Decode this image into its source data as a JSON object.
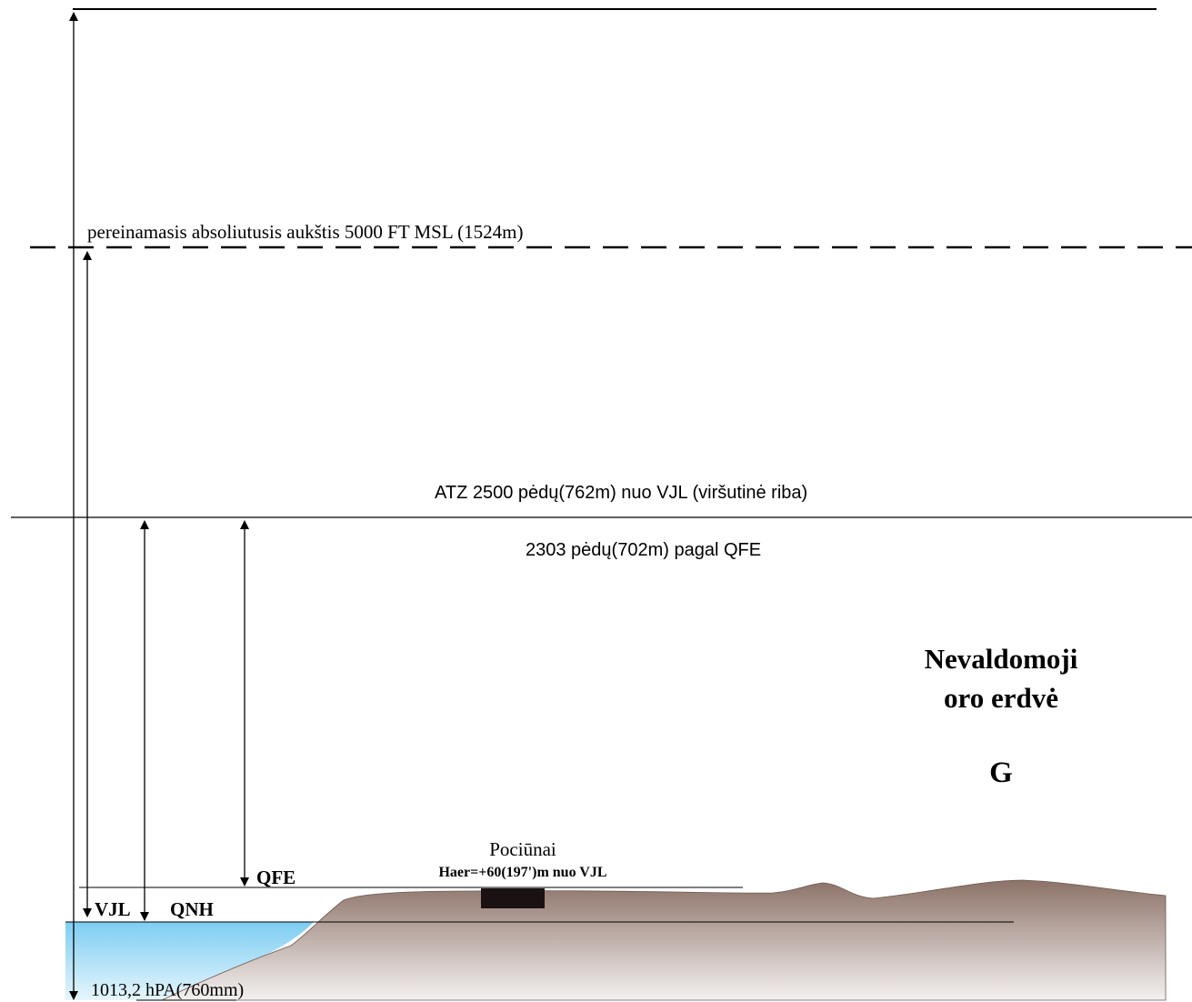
{
  "labels": {
    "transition_altitude": "pereinamasis absoliutusis aukštis 5000 FT MSL (1524m)",
    "atz_upper": "ATZ 2500 pėdų(762m) nuo VJL (viršutinė riba)",
    "qfe_height": "2303 pėdų(702m) pagal QFE",
    "airspace_line1": "Nevaldomoji",
    "airspace_line2": "oro erdvė",
    "airspace_class": "G",
    "airfield_name": "Pociūnai",
    "airfield_elevation": "Haer=+60(197')m nuo VJL",
    "qfe": "QFE",
    "vjl": "VJL",
    "qnh": "QNH",
    "standard_pressure": "1013,2 hPA(760mm)"
  },
  "colors": {
    "line": "#000000",
    "terrain_top": "#8c7268",
    "terrain_bottom": "#f4f1f0",
    "water_top": "#7dcdf2",
    "water_bottom": "#e6f6fd",
    "runway": "#1a1212"
  }
}
